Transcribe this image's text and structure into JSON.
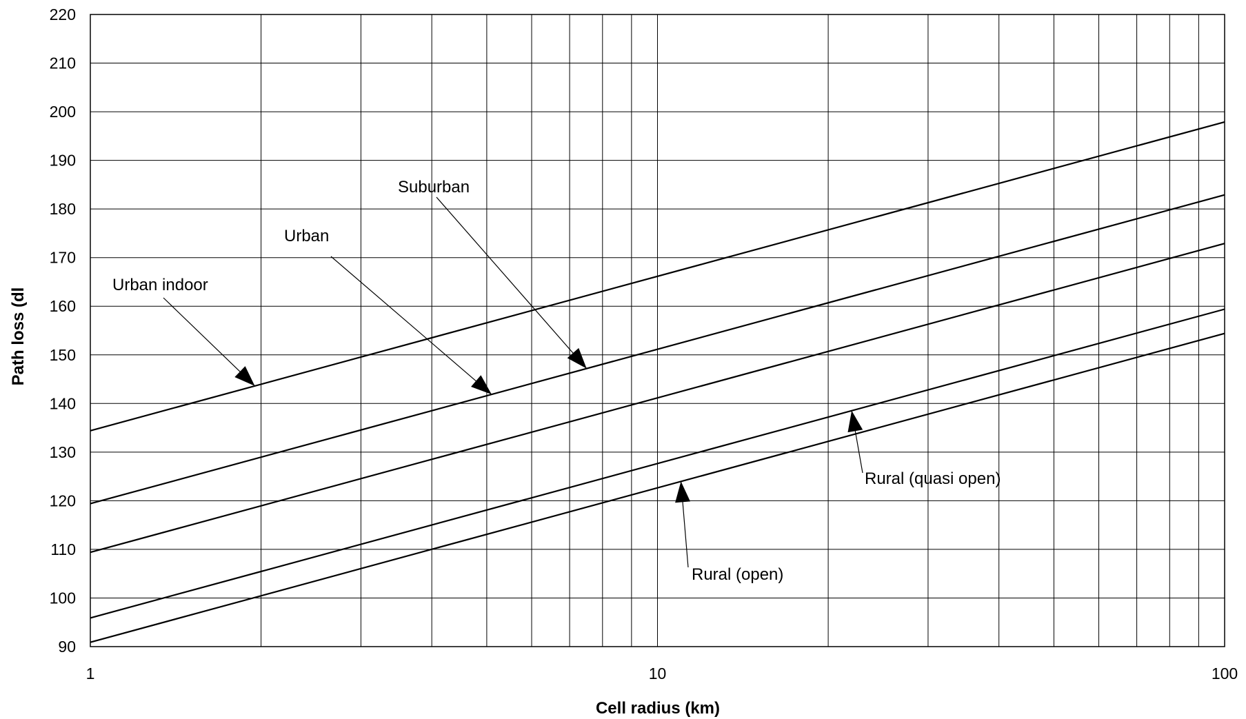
{
  "chart_data": {
    "type": "line",
    "title": "",
    "xlabel": "Cell radius (km)",
    "ylabel": "Path loss (dl",
    "xscale": "log",
    "xlim": [
      1,
      100
    ],
    "ylim": [
      90,
      220
    ],
    "x_ticks": [
      "1",
      "10",
      "100"
    ],
    "y_ticks": [
      "90",
      "100",
      "110",
      "120",
      "130",
      "140",
      "150",
      "160",
      "170",
      "180",
      "190",
      "200",
      "210",
      "220"
    ],
    "grid": true,
    "legend": "none",
    "series": [
      {
        "x": [
          1,
          100
        ],
        "values": [
          134.4,
          197.9
        ]
      },
      {
        "x": [
          1,
          100
        ],
        "values": [
          119.4,
          182.9
        ]
      },
      {
        "x": [
          1,
          100
        ],
        "values": [
          109.4,
          172.9
        ]
      },
      {
        "x": [
          1,
          100
        ],
        "values": [
          95.9,
          159.4
        ]
      },
      {
        "x": [
          1,
          100
        ],
        "values": [
          90.9,
          154.4
        ]
      }
    ],
    "annotations": [
      {
        "text": "Urban indoor",
        "series_index": 0,
        "point_x": 1.95
      },
      {
        "text": "Urban",
        "series_index": 1,
        "point_x": 5.1
      },
      {
        "text": "Suburban",
        "series_index": 1,
        "point_x": 7.5
      },
      {
        "text": "Rural (quasi open)",
        "series_index": 3,
        "point_x": 22
      },
      {
        "text": "Rural (open)",
        "series_index": 4,
        "point_x": 11
      }
    ]
  }
}
